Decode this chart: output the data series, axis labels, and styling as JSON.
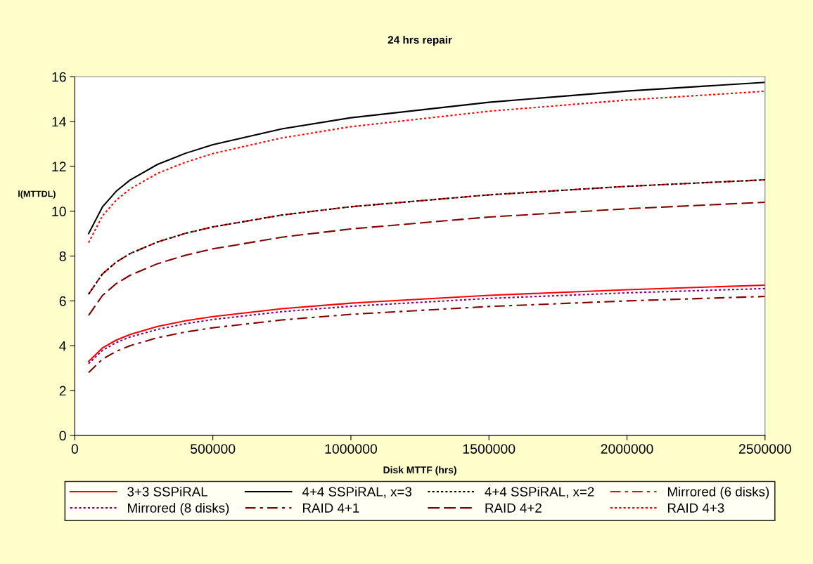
{
  "chart_data": {
    "type": "line",
    "title": "24 hrs repair",
    "xlabel": "Disk MTTF (hrs)",
    "ylabel": "l(MTTDL)",
    "x": [
      50000,
      100000,
      150000,
      200000,
      300000,
      400000,
      500000,
      750000,
      1000000,
      1500000,
      2000000,
      2500000
    ],
    "series": [
      {
        "name": "3+3 SSPiRAL",
        "color": "#ff0000",
        "line_style": "solid",
        "values": [
          3.3,
          3.9,
          4.25,
          4.5,
          4.86,
          5.11,
          5.3,
          5.65,
          5.9,
          6.25,
          6.5,
          6.7
        ]
      },
      {
        "name": "4+4 SSPiRAL, x=3",
        "color": "#000000",
        "line_style": "solid",
        "values": [
          9.0,
          10.19,
          10.89,
          11.39,
          12.09,
          12.58,
          12.97,
          13.67,
          14.17,
          14.86,
          15.36,
          15.75
        ]
      },
      {
        "name": "4+4 SSPiRAL, x=2",
        "color": "#000000",
        "line_style": "dotted",
        "values": [
          6.3,
          7.2,
          7.73,
          8.11,
          8.63,
          9.01,
          9.3,
          9.83,
          10.2,
          10.73,
          11.11,
          11.4
        ]
      },
      {
        "name": "Mirrored (6 disks)",
        "color": "#ff0000",
        "line_style": "dashdot",
        "values": [
          6.3,
          7.2,
          7.73,
          8.11,
          8.63,
          9.01,
          9.3,
          9.83,
          10.2,
          10.73,
          11.11,
          11.4
        ]
      },
      {
        "name": "Mirrored (8 disks)",
        "color": "#800080",
        "line_style": "dotted",
        "values": [
          3.2,
          3.79,
          4.14,
          4.39,
          4.73,
          4.98,
          5.17,
          5.52,
          5.76,
          6.11,
          6.36,
          6.55
        ]
      },
      {
        "name": "RAID 4+1",
        "color": "#800000",
        "line_style": "dashdot",
        "values": [
          2.8,
          3.4,
          3.75,
          4.0,
          4.36,
          4.61,
          4.8,
          5.15,
          5.4,
          5.75,
          6.0,
          6.2
        ]
      },
      {
        "name": "RAID 4+2",
        "color": "#800000",
        "line_style": "dashed",
        "values": [
          5.35,
          6.24,
          6.77,
          7.14,
          7.66,
          8.03,
          8.32,
          8.84,
          9.21,
          9.74,
          10.11,
          10.4
        ]
      },
      {
        "name": "RAID 4+3",
        "color": "#ff0000",
        "line_style": "dotted",
        "values": [
          8.6,
          9.79,
          10.49,
          10.99,
          11.69,
          12.18,
          12.57,
          13.27,
          13.77,
          14.46,
          14.96,
          15.35
        ]
      }
    ],
    "xlim": [
      0,
      2500000
    ],
    "xticks": [
      0,
      500000,
      1000000,
      1500000,
      2000000,
      2500000
    ],
    "ylim": [
      0,
      16
    ],
    "yticks": [
      0,
      2,
      4,
      6,
      8,
      10,
      12,
      14,
      16
    ],
    "grid": false,
    "legend": "bottom",
    "marker": "none"
  }
}
